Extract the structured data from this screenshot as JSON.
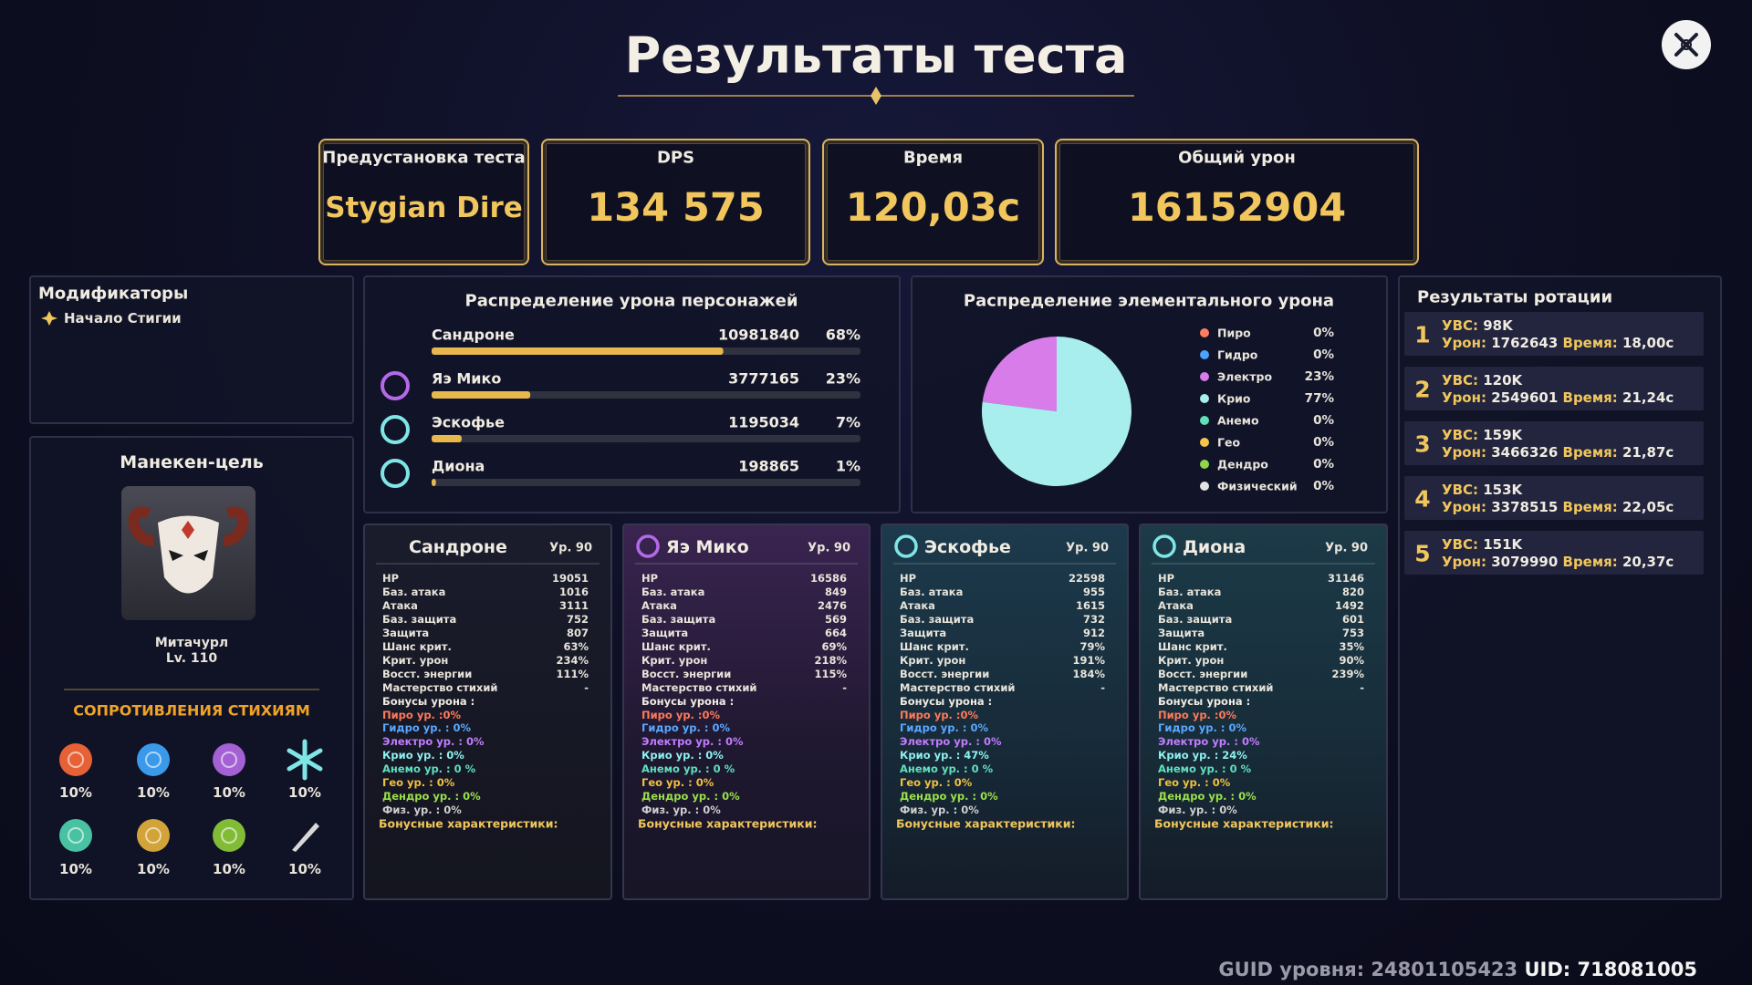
{
  "title": "Результаты теста",
  "summary": [
    {
      "label": "Предустановка теста",
      "value": "Stygian Dire"
    },
    {
      "label": "DPS",
      "value": "134 575"
    },
    {
      "label": "Время",
      "value": "120,03с"
    },
    {
      "label": "Общий урон",
      "value": 16152904
    }
  ],
  "modifiers": {
    "title": "Модификаторы",
    "items": [
      "Начало Стигии"
    ]
  },
  "target": {
    "title": "Манекен-цель",
    "name": "Митачурл",
    "level": "Lv. 110",
    "resist_title": "СОПРОТИВЛЕНИЯ СТИХИЯМ",
    "resists": [
      "10%",
      "10%",
      "10%",
      "10%",
      "10%",
      "10%",
      "10%",
      "10%"
    ]
  },
  "damage_distribution": {
    "title": "Распределение урона персонажей",
    "categories": [
      "Сандроне",
      "Яэ Мико",
      "Эскофье",
      "Диона"
    ],
    "values": [
      10981840,
      3777165,
      1195034,
      198865
    ],
    "shares": [
      68,
      23,
      7,
      1
    ],
    "share_labels": [
      "68%",
      "23%",
      "7%",
      "1%"
    ],
    "xlim": [
      0,
      100
    ],
    "color": "#e8b84c"
  },
  "element_distribution": {
    "type": "pie",
    "title": "Распределение элементального урона",
    "categories": [
      "Пиро",
      "Гидро",
      "Электро",
      "Крио",
      "Анемо",
      "Гео",
      "Дендро",
      "Физический"
    ],
    "values": [
      0,
      0,
      23,
      77,
      0,
      0,
      0,
      0
    ],
    "value_labels": [
      "0%",
      "0%",
      "23%",
      "77%",
      "0%",
      "0%",
      "0%",
      "0%"
    ],
    "colors": [
      "#ff7e5f",
      "#4aa3ff",
      "#d77ce8",
      "#a8eeee",
      "#5fe0b8",
      "#f4c54a",
      "#8fd64a",
      "#e4e4e4"
    ]
  },
  "characters": [
    {
      "name": "Сандроне",
      "level": "Ур. 90",
      "stats": [
        [
          "HP",
          19051
        ],
        [
          "Баз. атака",
          1016
        ],
        [
          "Атака",
          3111
        ],
        [
          "Баз. защита",
          752
        ],
        [
          "Защита",
          807
        ],
        [
          "Шанс крит.",
          "63%"
        ],
        [
          "Крит. урон",
          "234%"
        ],
        [
          "Восст. энергии",
          "111%"
        ],
        [
          "Мастерство стихий",
          "-"
        ]
      ],
      "bonuses": [
        "Бонусы урона :",
        "Пиро ур. :0%",
        "Гидро ур. : 0%",
        "Электро ур. : 0%",
        "Крио ур. : 0%",
        "Анемо ур. : 0 %",
        "Гео ур. : 0%",
        "Дендро ур. : 0%",
        "Физ. ур. : 0%"
      ],
      "footer": "Бонусные характеристики:"
    },
    {
      "name": "Яэ Мико",
      "level": "Ур. 90",
      "stats": [
        [
          "HP",
          16586
        ],
        [
          "Баз. атака",
          849
        ],
        [
          "Атака",
          2476
        ],
        [
          "Баз. защита",
          569
        ],
        [
          "Защита",
          664
        ],
        [
          "Шанс крит.",
          "69%"
        ],
        [
          "Крит. урон",
          "218%"
        ],
        [
          "Восст. энергии",
          "115%"
        ],
        [
          "Мастерство стихий",
          "-"
        ]
      ],
      "bonuses": [
        "Бонусы урона :",
        "Пиро ур. :0%",
        "Гидро ур. : 0%",
        "Электро ур. : 0%",
        "Крио ур. : 0%",
        "Анемо ур. : 0 %",
        "Гео ур. : 0%",
        "Дендро ур. : 0%",
        "Физ. ур. : 0%"
      ],
      "footer": "Бонусные характеристики:"
    },
    {
      "name": "Эскофье",
      "level": "Ур. 90",
      "stats": [
        [
          "HP",
          22598
        ],
        [
          "Баз. атака",
          955
        ],
        [
          "Атака",
          1615
        ],
        [
          "Баз. защита",
          732
        ],
        [
          "Защита",
          912
        ],
        [
          "Шанс крит.",
          "79%"
        ],
        [
          "Крит. урон",
          "191%"
        ],
        [
          "Восст. энергии",
          "184%"
        ],
        [
          "Мастерство стихий",
          "-"
        ]
      ],
      "bonuses": [
        "Бонусы урона :",
        "Пиро ур. :0%",
        "Гидро ур. : 0%",
        "Электро ур. : 0%",
        "Крио ур. : 47%",
        "Анемо ур. : 0 %",
        "Гео ур. : 0%",
        "Дендро ур. : 0%",
        "Физ. ур. : 0%"
      ],
      "footer": "Бонусные характеристики:"
    },
    {
      "name": "Диона",
      "level": "Ур. 90",
      "stats": [
        [
          "HP",
          31146
        ],
        [
          "Баз. атака",
          820
        ],
        [
          "Атака",
          1492
        ],
        [
          "Баз. защита",
          601
        ],
        [
          "Защита",
          753
        ],
        [
          "Шанс крит.",
          "35%"
        ],
        [
          "Крит. урон",
          "90%"
        ],
        [
          "Восст. энергии",
          "239%"
        ],
        [
          "Мастерство стихий",
          "-"
        ]
      ],
      "bonuses": [
        "Бонусы урона :",
        "Пиро ур. :0%",
        "Гидро ур. : 0%",
        "Электро ур. : 0%",
        "Крио ур. : 24%",
        "Анемо ур. : 0 %",
        "Гео ур. : 0%",
        "Дендро ур. : 0%",
        "Физ. ур. : 0%"
      ],
      "footer": "Бонусные характеристики:"
    }
  ],
  "rotation": {
    "title": "Результаты ротации",
    "labels": {
      "dps": "УВС:",
      "damage": "Урон:",
      "time": "Время:"
    },
    "items": [
      {
        "rank": 1,
        "dps": "98K",
        "damage": 1762643,
        "time": "18,00с"
      },
      {
        "rank": 2,
        "dps": "120K",
        "damage": 2549601,
        "time": "21,24с"
      },
      {
        "rank": 3,
        "dps": "159K",
        "damage": 3466326,
        "time": "21,87с"
      },
      {
        "rank": 4,
        "dps": "153K",
        "damage": 3378515,
        "time": "22,05с"
      },
      {
        "rank": 5,
        "dps": "151K",
        "damage": 3079990,
        "time": "20,37с"
      }
    ]
  },
  "footer": {
    "guid_label": "GUID уровня:",
    "guid": "24801105423",
    "uid_label": "UID:",
    "uid": "718081005"
  }
}
